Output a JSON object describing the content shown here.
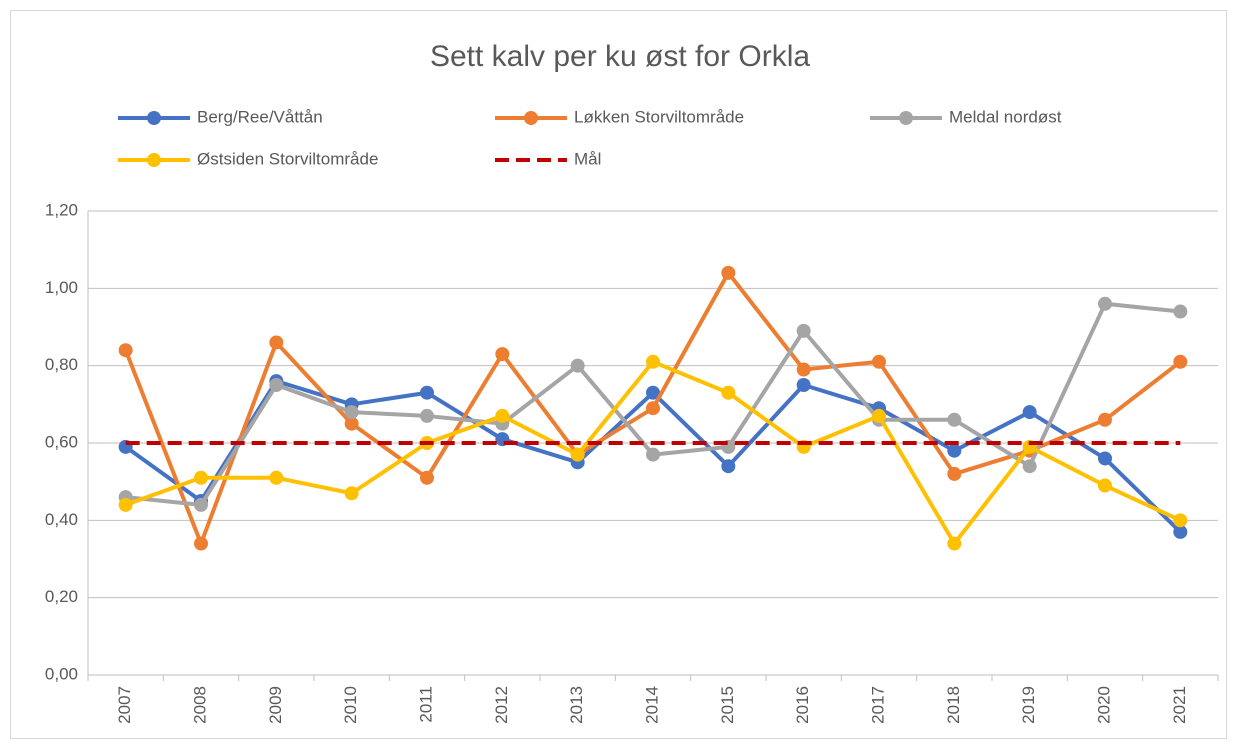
{
  "chart_data": {
    "type": "line",
    "title": "Sett kalv per ku øst for Orkla",
    "categories": [
      "2007",
      "2008",
      "2009",
      "2010",
      "2011",
      "2012",
      "2013",
      "2014",
      "2015",
      "2016",
      "2017",
      "2018",
      "2019",
      "2020",
      "2021"
    ],
    "series": [
      {
        "name": "Berg/Ree/Våttån",
        "color": "#4472c4",
        "values": [
          0.59,
          0.45,
          0.76,
          0.7,
          0.73,
          0.61,
          0.55,
          0.73,
          0.54,
          0.75,
          0.69,
          0.58,
          0.68,
          0.56,
          0.37
        ]
      },
      {
        "name": "Løkken Storviltområde",
        "color": "#ed7d31",
        "values": [
          0.84,
          0.34,
          0.86,
          0.65,
          0.51,
          0.83,
          0.57,
          0.69,
          1.04,
          0.79,
          0.81,
          0.52,
          0.58,
          0.66,
          0.81
        ]
      },
      {
        "name": "Meldal nordøst",
        "color": "#a5a5a5",
        "values": [
          0.46,
          0.44,
          0.75,
          0.68,
          0.67,
          0.65,
          0.8,
          0.57,
          0.59,
          0.89,
          0.66,
          0.66,
          0.54,
          0.96,
          0.94
        ]
      },
      {
        "name": "Østsiden Storviltområde",
        "color": "#ffc000",
        "values": [
          0.44,
          0.51,
          0.51,
          0.47,
          0.6,
          0.67,
          0.57,
          0.81,
          0.73,
          0.59,
          0.67,
          0.34,
          0.59,
          0.49,
          0.4
        ]
      },
      {
        "name": "Mål",
        "color": "#c00000",
        "dashed": true,
        "markers": false,
        "values": [
          0.6,
          0.6,
          0.6,
          0.6,
          0.6,
          0.6,
          0.6,
          0.6,
          0.6,
          0.6,
          0.6,
          0.6,
          0.6,
          0.6,
          0.6
        ]
      }
    ],
    "ylim": [
      0,
      1.2
    ],
    "yticks": [
      {
        "value": 0,
        "label": "0,00"
      },
      {
        "value": 0.2,
        "label": "0,20"
      },
      {
        "value": 0.4,
        "label": "0,40"
      },
      {
        "value": 0.6,
        "label": "0,60"
      },
      {
        "value": 0.8,
        "label": "0,80"
      },
      {
        "value": 1.0,
        "label": "1,00"
      },
      {
        "value": 1.2,
        "label": "1,20"
      }
    ],
    "grid": true,
    "legend": "top"
  }
}
